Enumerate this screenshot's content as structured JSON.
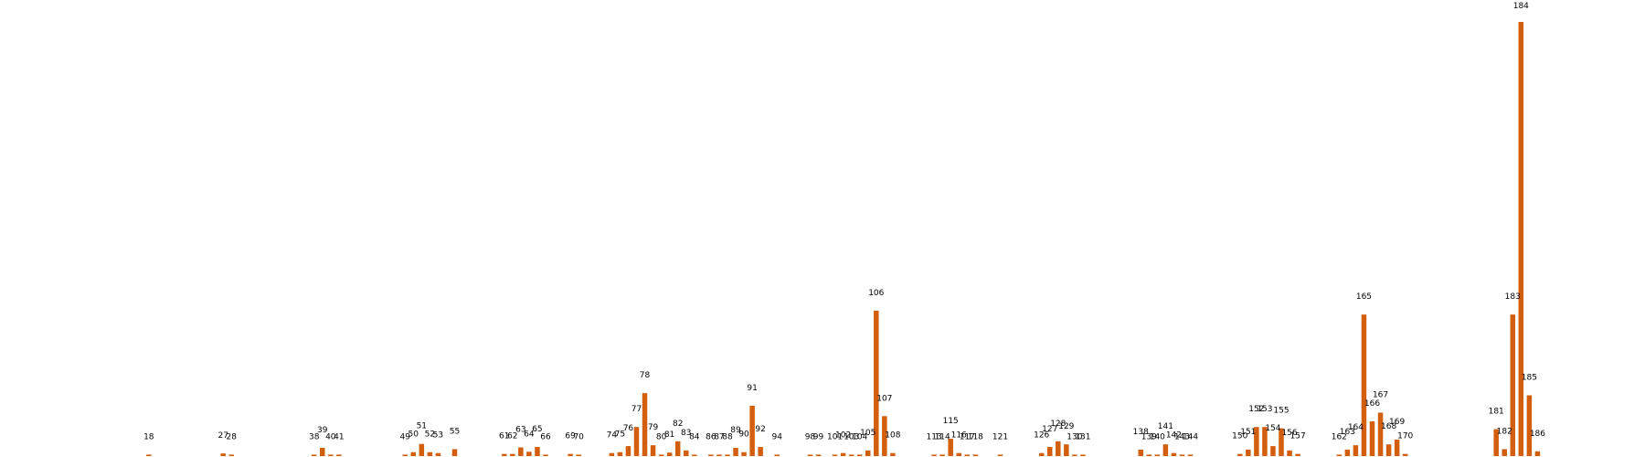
{
  "chart_data": {
    "type": "bar",
    "title": "",
    "xlabel": "",
    "ylabel": "",
    "grid": false,
    "legend": "none",
    "colors": {
      "bar": "#d35f0e",
      "label": "#000000"
    },
    "ylim": [
      0,
      100
    ],
    "x_domain": [
      0,
      199
    ],
    "points": [
      {
        "x": 18,
        "value": 0.05
      },
      {
        "x": 27,
        "value": 0.6
      },
      {
        "x": 28,
        "value": 0.05
      },
      {
        "x": 38,
        "value": 0.3
      },
      {
        "x": 39,
        "value": 1.9
      },
      {
        "x": 40,
        "value": 0.05
      },
      {
        "x": 41,
        "value": 0.3
      },
      {
        "x": 49,
        "value": 0.05
      },
      {
        "x": 50,
        "value": 0.9
      },
      {
        "x": 51,
        "value": 2.8
      },
      {
        "x": 52,
        "value": 0.9
      },
      {
        "x": 53,
        "value": 0.7
      },
      {
        "x": 55,
        "value": 1.6
      },
      {
        "x": 61,
        "value": 0.5
      },
      {
        "x": 62,
        "value": 0.5
      },
      {
        "x": 63,
        "value": 2.0
      },
      {
        "x": 64,
        "value": 1.0
      },
      {
        "x": 65,
        "value": 2.1
      },
      {
        "x": 66,
        "value": 0.3
      },
      {
        "x": 69,
        "value": 0.5
      },
      {
        "x": 70,
        "value": 0.3
      },
      {
        "x": 74,
        "value": 0.7
      },
      {
        "x": 75,
        "value": 0.9
      },
      {
        "x": 76,
        "value": 2.3
      },
      {
        "x": 77,
        "value": 6.7
      },
      {
        "x": 78,
        "value": 14.5
      },
      {
        "x": 79,
        "value": 2.5
      },
      {
        "x": 80,
        "value": 0.05
      },
      {
        "x": 81,
        "value": 0.8
      },
      {
        "x": 82,
        "value": 3.4
      },
      {
        "x": 83,
        "value": 1.3
      },
      {
        "x": 84,
        "value": 0.3
      },
      {
        "x": 86,
        "value": 0.3
      },
      {
        "x": 87,
        "value": 0.3
      },
      {
        "x": 88,
        "value": 0.3
      },
      {
        "x": 89,
        "value": 1.9
      },
      {
        "x": 90,
        "value": 0.9
      },
      {
        "x": 91,
        "value": 11.6
      },
      {
        "x": 92,
        "value": 2.1
      },
      {
        "x": 94,
        "value": 0.05
      },
      {
        "x": 98,
        "value": 0.05
      },
      {
        "x": 99,
        "value": 0.05
      },
      {
        "x": 101,
        "value": 0.3
      },
      {
        "x": 102,
        "value": 0.7
      },
      {
        "x": 103,
        "value": 0.3
      },
      {
        "x": 104,
        "value": 0.3
      },
      {
        "x": 105,
        "value": 1.3
      },
      {
        "x": 106,
        "value": 33.5
      },
      {
        "x": 107,
        "value": 9.2
      },
      {
        "x": 108,
        "value": 0.7
      },
      {
        "x": 113,
        "value": 0.3
      },
      {
        "x": 114,
        "value": 0.3
      },
      {
        "x": 115,
        "value": 4.0
      },
      {
        "x": 116,
        "value": 0.7
      },
      {
        "x": 117,
        "value": 0.05
      },
      {
        "x": 118,
        "value": 0.3
      },
      {
        "x": 121,
        "value": 0.05
      },
      {
        "x": 126,
        "value": 0.7
      },
      {
        "x": 127,
        "value": 2.1
      },
      {
        "x": 128,
        "value": 3.4
      },
      {
        "x": 129,
        "value": 2.7
      },
      {
        "x": 130,
        "value": 0.3
      },
      {
        "x": 131,
        "value": 0.3
      },
      {
        "x": 138,
        "value": 1.5
      },
      {
        "x": 139,
        "value": 0.3
      },
      {
        "x": 140,
        "value": 0.3
      },
      {
        "x": 141,
        "value": 2.7
      },
      {
        "x": 142,
        "value": 0.7
      },
      {
        "x": 143,
        "value": 0.05
      },
      {
        "x": 144,
        "value": 0.05
      },
      {
        "x": 150,
        "value": 0.5
      },
      {
        "x": 151,
        "value": 1.5
      },
      {
        "x": 152,
        "value": 6.7
      },
      {
        "x": 153,
        "value": 6.7
      },
      {
        "x": 154,
        "value": 2.3
      },
      {
        "x": 155,
        "value": 6.4
      },
      {
        "x": 156,
        "value": 1.3
      },
      {
        "x": 157,
        "value": 0.5
      },
      {
        "x": 162,
        "value": 0.05
      },
      {
        "x": 163,
        "value": 1.5
      },
      {
        "x": 164,
        "value": 2.5
      },
      {
        "x": 165,
        "value": 32.6
      },
      {
        "x": 166,
        "value": 8.0
      },
      {
        "x": 167,
        "value": 10.0
      },
      {
        "x": 168,
        "value": 2.7
      },
      {
        "x": 169,
        "value": 3.8
      },
      {
        "x": 170,
        "value": 0.5
      },
      {
        "x": 181,
        "value": 6.2
      },
      {
        "x": 182,
        "value": 1.6
      },
      {
        "x": 183,
        "value": 32.6
      },
      {
        "x": 184,
        "value": 100
      },
      {
        "x": 185,
        "value": 14.0
      },
      {
        "x": 186,
        "value": 1.1
      }
    ]
  }
}
